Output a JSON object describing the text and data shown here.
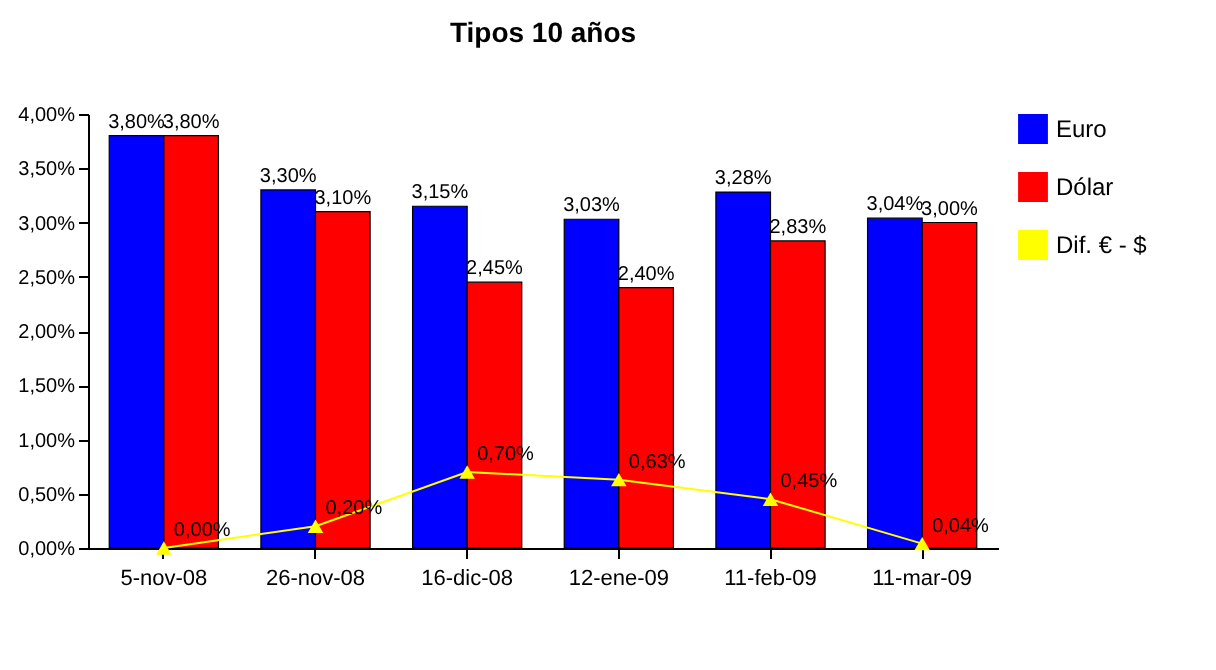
{
  "chart_data": {
    "type": "bar",
    "title": "Tipos 10 años",
    "categories": [
      "5-nov-08",
      "26-nov-08",
      "16-dic-08",
      "12-ene-09",
      "11-feb-09",
      "11-mar-09"
    ],
    "series": [
      {
        "name": "Euro",
        "color": "#0000ff",
        "values": [
          3.8,
          3.3,
          3.15,
          3.03,
          3.28,
          3.04
        ],
        "value_labels": [
          "3,80%",
          "3,30%",
          "3,15%",
          "3,03%",
          "3,28%",
          "3,04%"
        ]
      },
      {
        "name": "Dólar",
        "color": "#ff0000",
        "values": [
          3.8,
          3.1,
          2.45,
          2.4,
          2.83,
          3.0
        ],
        "value_labels": [
          "3,80%",
          "3,10%",
          "2,45%",
          "2,40%",
          "2,83%",
          "3,00%"
        ]
      },
      {
        "name": "Dif. € - $",
        "type": "line",
        "color": "#ffff00",
        "marker": "triangle",
        "values": [
          0.0,
          0.2,
          0.7,
          0.63,
          0.45,
          0.04
        ],
        "value_labels": [
          "0,00%",
          "0,20%",
          "0,70%",
          "0,63%",
          "0,45%",
          "0,04%"
        ]
      }
    ],
    "ylim": [
      0,
      4
    ],
    "yticks": [
      {
        "value": 0,
        "label": "0,00%"
      },
      {
        "value": 0.5,
        "label": "0,50%"
      },
      {
        "value": 1,
        "label": "1,00%"
      },
      {
        "value": 1.5,
        "label": "1,50%"
      },
      {
        "value": 2,
        "label": "2,00%"
      },
      {
        "value": 2.5,
        "label": "2,50%"
      },
      {
        "value": 3,
        "label": "3,00%"
      },
      {
        "value": 3.5,
        "label": "3,50%"
      },
      {
        "value": 4,
        "label": "4,00%"
      }
    ],
    "grid": false,
    "legend": "right"
  }
}
